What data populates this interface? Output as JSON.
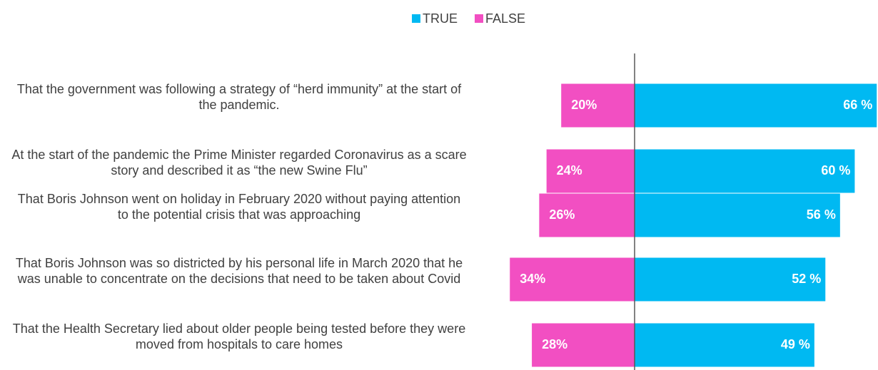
{
  "chart_data": {
    "type": "diverging-bar",
    "categories": [
      "That the government was following a strategy of “herd immunity” at the start of the pandemic.",
      "At the start of the pandemic the Prime Minister regarded Coronavirus as a scare story and described it as “the new Swine Flu”",
      "That Boris Johnson went on holiday in February 2020 without paying attention to the potential crisis that was approaching",
      "That Boris Johnson was so districted by his personal life in March 2020 that he was unable to concentrate on the decisions that need to be taken about Covid",
      "That the Health Secretary lied about older people being tested before they were moved from hospitals to care homes"
    ],
    "series": [
      {
        "name": "TRUE",
        "color": "#00b9f2",
        "values": [
          66,
          60,
          56,
          52,
          49
        ],
        "value_labels": [
          "66 %",
          "60 %",
          "56 %",
          "52 %",
          "49 %"
        ]
      },
      {
        "name": "FALSE",
        "color": "#f24fc2",
        "values": [
          20,
          24,
          26,
          34,
          28
        ],
        "value_labels": [
          "20%",
          "24%",
          "26%",
          "34%",
          "28%"
        ]
      }
    ],
    "legend": "top"
  }
}
